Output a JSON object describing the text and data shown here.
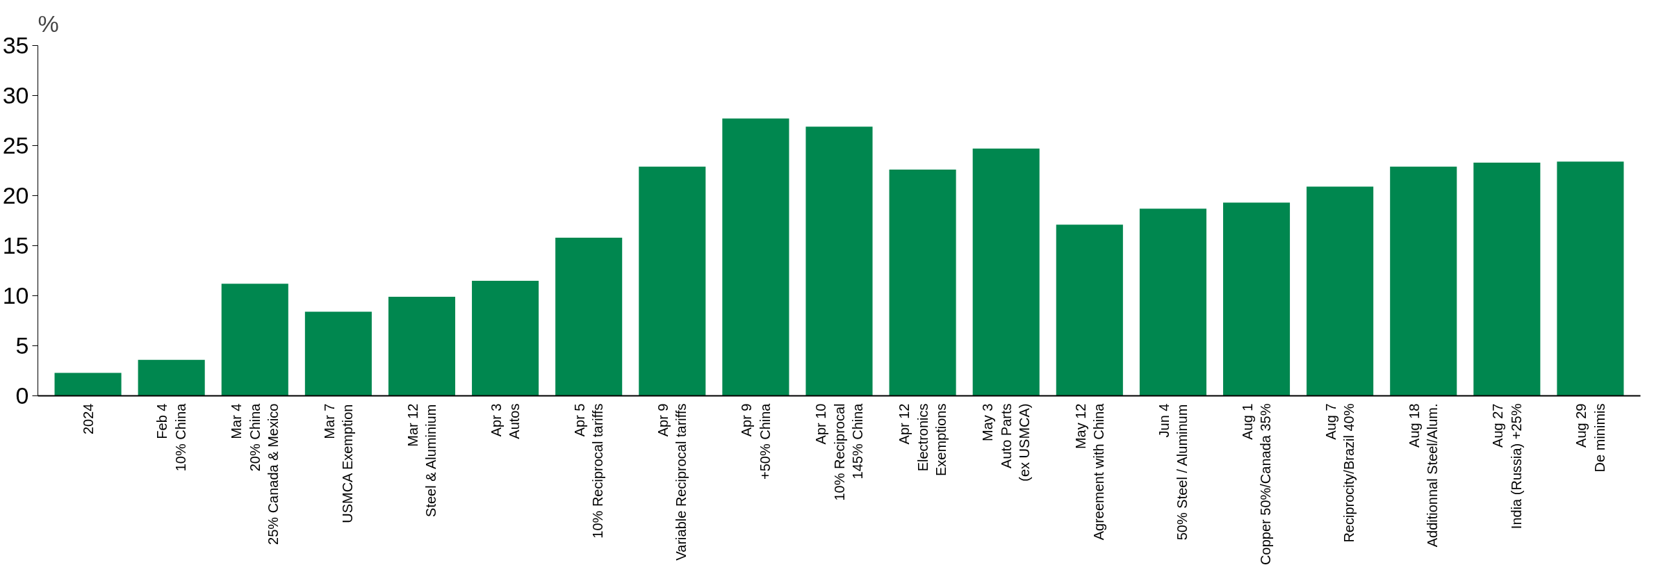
{
  "chart_data": {
    "type": "bar",
    "ylabel": "%",
    "categories": [
      "2024",
      "Feb 4\n10% China",
      "Mar 4\n20% China\n25% Canada & Mexico",
      "Mar 7\nUSMCA Exemption",
      "Mar 12\nSteel & Aluminium",
      "Apr 3\nAutos",
      "Apr 5\n10% Reciprocal tariffs",
      "Apr 9\nVariable Reciprocal tariffs",
      "Apr 9\n+50% China",
      "Apr 10\n10% Reciprocal\n145% China",
      "Apr 12\nElectronics\nExemptions",
      "May 3\nAuto Parts\n(ex USMCA)",
      "May 12\nAgreement with China",
      "Jun 4\n50% Steel / Aluminum",
      "Aug 1\nCopper 50%/Canada 35%",
      "Aug 7\nReciprocity/Brazil 40%",
      "Aug 18\nAdditionnal Steel/Alum.",
      "Aug 27\nIndia (Russia) +25%",
      "Aug 29\nDe minimis"
    ],
    "values": [
      2.3,
      3.6,
      11.2,
      8.4,
      9.9,
      11.5,
      15.8,
      22.9,
      27.7,
      26.9,
      22.6,
      24.7,
      17.1,
      18.7,
      19.3,
      20.9,
      22.9,
      23.3,
      23.4
    ],
    "color": "#00874f",
    "ylim": [
      0,
      35
    ],
    "yticks": [
      0,
      5,
      10,
      15,
      20,
      25,
      30,
      35
    ],
    "grid": false
  }
}
